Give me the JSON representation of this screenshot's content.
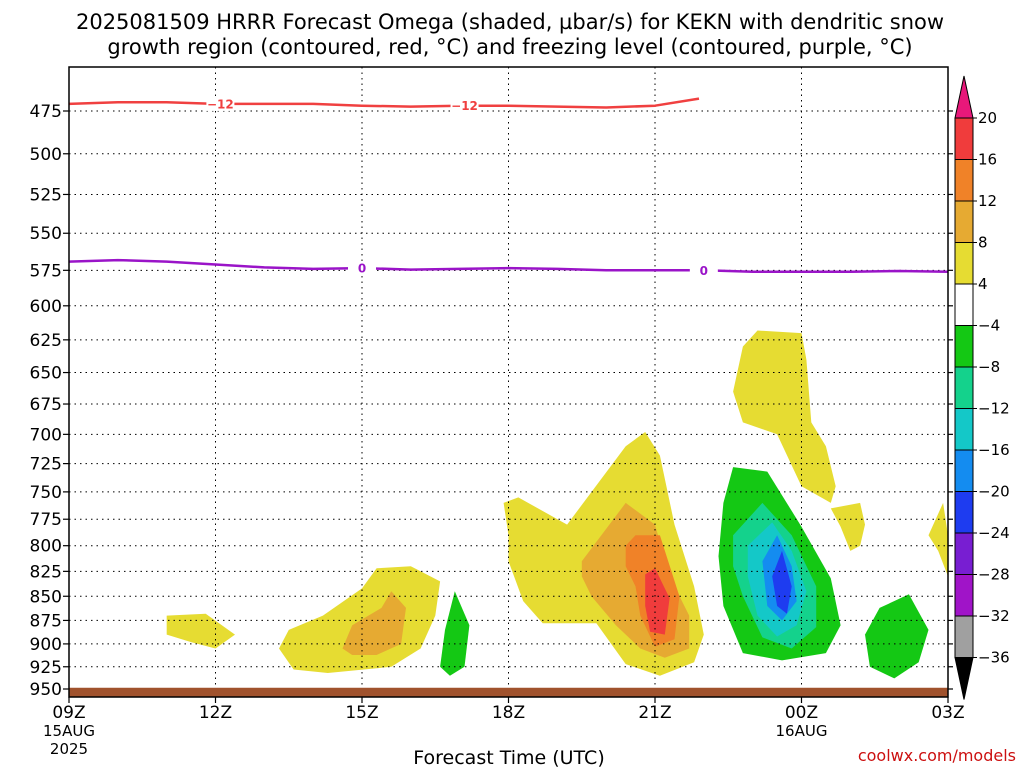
{
  "title": {
    "line1": "2025081509 HRRR Forecast Omega (shaded, µbar/s) for KEKN with dendritic snow",
    "line2": "growth region (contoured, red, °C) and freezing level (contoured, purple, °C)"
  },
  "credit": "coolwx.com/models",
  "chart_data": {
    "type": "contour",
    "title": "2025081509 HRRR Forecast Omega (shaded, µbar/s) for KEKN with dendritic snow growth region (contoured, red, °C) and freezing level (contoured, purple, °C)",
    "xlabel": "Forecast Time (UTC)",
    "ylabel": "",
    "x_range_hours": [
      0,
      18
    ],
    "y_range_hpa": [
      450,
      955
    ],
    "y_axis": "pressure (hPa), decreasing upward",
    "grid": "dotted",
    "x_ticks": [
      {
        "hour": 0,
        "label": "09Z",
        "sub1": "15AUG",
        "sub2": "2025"
      },
      {
        "hour": 3,
        "label": "12Z"
      },
      {
        "hour": 6,
        "label": "15Z"
      },
      {
        "hour": 9,
        "label": "18Z"
      },
      {
        "hour": 12,
        "label": "21Z"
      },
      {
        "hour": 15,
        "label": "00Z",
        "sub1": "16AUG"
      },
      {
        "hour": 18,
        "label": "03Z"
      }
    ],
    "y_ticks": [
      475,
      500,
      525,
      550,
      575,
      600,
      625,
      650,
      675,
      700,
      725,
      750,
      775,
      800,
      825,
      850,
      875,
      900,
      925,
      950
    ],
    "colorbar": {
      "unit": "µbar/s",
      "labels": [
        "20",
        "16",
        "12",
        "8",
        "4",
        "−4",
        "−8",
        "−12",
        "−16",
        "−20",
        "−24",
        "−28",
        "−32",
        "−36"
      ],
      "bins": [
        {
          "range": ">20",
          "color": "#e8187a"
        },
        {
          "range": "16 to 20",
          "color": "#f03c3c"
        },
        {
          "range": "12 to 16",
          "color": "#f08228"
        },
        {
          "range": "8 to 12",
          "color": "#e6aa32"
        },
        {
          "range": "4 to 8",
          "color": "#e6dc32"
        },
        {
          "range": "-4 to 4",
          "color": "#ffffff"
        },
        {
          "range": "-8 to -4",
          "color": "#14c814"
        },
        {
          "range": "-12 to -8",
          "color": "#14d28c"
        },
        {
          "range": "-16 to -12",
          "color": "#14c8c8"
        },
        {
          "range": "-20 to -16",
          "color": "#148cf0"
        },
        {
          "range": "-24 to -20",
          "color": "#1e3cf0"
        },
        {
          "range": "-28 to -24",
          "color": "#781ed2"
        },
        {
          "range": "-32 to -28",
          "color": "#a014c8"
        },
        {
          "range": "-36 to -32",
          "color": "#a0a0a0"
        },
        {
          "range": "<-36",
          "color": "#000000"
        }
      ]
    },
    "omega_regions": [
      {
        "level": "4 to 8",
        "color": "#e6dc32",
        "points": [
          [
            2.0,
            870
          ],
          [
            2.8,
            868
          ],
          [
            3.4,
            890
          ],
          [
            3.0,
            905
          ],
          [
            2.5,
            898
          ],
          [
            2.0,
            890
          ]
        ]
      },
      {
        "level": "4 to 8",
        "color": "#e6dc32",
        "points": [
          [
            4.3,
            905
          ],
          [
            4.5,
            885
          ],
          [
            5.2,
            870
          ],
          [
            6.0,
            842
          ],
          [
            6.3,
            822
          ],
          [
            7.0,
            820
          ],
          [
            7.6,
            835
          ],
          [
            7.5,
            870
          ],
          [
            7.2,
            905
          ],
          [
            6.6,
            925
          ],
          [
            5.3,
            932
          ],
          [
            4.6,
            928
          ]
        ]
      },
      {
        "level": "8 to 12",
        "color": "#e6aa32",
        "points": [
          [
            5.6,
            905
          ],
          [
            5.8,
            880
          ],
          [
            6.4,
            862
          ],
          [
            6.6,
            845
          ],
          [
            6.9,
            862
          ],
          [
            6.8,
            900
          ],
          [
            6.3,
            912
          ],
          [
            5.8,
            912
          ]
        ]
      },
      {
        "level": "4 to 8",
        "color": "#e6dc32",
        "points": [
          [
            9.0,
            790
          ],
          [
            8.9,
            760
          ],
          [
            9.2,
            755
          ],
          [
            10.2,
            780
          ],
          [
            11.4,
            710
          ],
          [
            11.8,
            698
          ],
          [
            12.1,
            718
          ],
          [
            12.4,
            780
          ],
          [
            12.8,
            840
          ],
          [
            13.0,
            890
          ],
          [
            12.8,
            920
          ],
          [
            12.1,
            935
          ],
          [
            11.4,
            922
          ],
          [
            10.8,
            878
          ],
          [
            9.7,
            878
          ],
          [
            9.3,
            855
          ],
          [
            9.0,
            815
          ]
        ]
      },
      {
        "level": "8 to 12",
        "color": "#e6aa32",
        "points": [
          [
            10.5,
            815
          ],
          [
            11.4,
            760
          ],
          [
            12.0,
            780
          ],
          [
            12.3,
            830
          ],
          [
            12.7,
            870
          ],
          [
            12.7,
            905
          ],
          [
            12.2,
            915
          ],
          [
            11.7,
            905
          ],
          [
            11.2,
            880
          ],
          [
            10.7,
            850
          ],
          [
            10.5,
            830
          ]
        ]
      },
      {
        "level": "12 to 16",
        "color": "#f08228",
        "points": [
          [
            11.4,
            800
          ],
          [
            11.6,
            790
          ],
          [
            12.1,
            790
          ],
          [
            12.5,
            850
          ],
          [
            12.4,
            895
          ],
          [
            12.0,
            903
          ],
          [
            11.7,
            870
          ],
          [
            11.6,
            840
          ],
          [
            11.4,
            820
          ]
        ]
      },
      {
        "level": "16 to 20",
        "color": "#f03c3c",
        "points": [
          [
            11.8,
            828
          ],
          [
            12.0,
            822
          ],
          [
            12.3,
            852
          ],
          [
            12.2,
            890
          ],
          [
            11.9,
            887
          ],
          [
            11.8,
            860
          ]
        ]
      },
      {
        "level": "4 to 8",
        "color": "#e6dc32",
        "points": [
          [
            13.6,
            665
          ],
          [
            13.8,
            630
          ],
          [
            14.1,
            618
          ],
          [
            15.0,
            620
          ],
          [
            15.1,
            640
          ],
          [
            15.2,
            690
          ],
          [
            15.5,
            710
          ],
          [
            15.7,
            745
          ],
          [
            15.6,
            760
          ],
          [
            15.0,
            745
          ],
          [
            14.5,
            700
          ],
          [
            13.8,
            690
          ]
        ]
      },
      {
        "level": "4 to 8",
        "color": "#e6dc32",
        "points": [
          [
            15.6,
            765
          ],
          [
            16.2,
            760
          ],
          [
            16.3,
            780
          ],
          [
            16.2,
            800
          ],
          [
            16.0,
            805
          ],
          [
            15.8,
            782
          ]
        ]
      },
      {
        "level": "4 to 8",
        "color": "#e6dc32",
        "points": [
          [
            17.6,
            790
          ],
          [
            17.9,
            760
          ],
          [
            18.0,
            790
          ],
          [
            18.0,
            830
          ],
          [
            17.8,
            805
          ]
        ]
      },
      {
        "level": "-8 to -4",
        "color": "#14c814",
        "points": [
          [
            7.6,
            925
          ],
          [
            7.7,
            885
          ],
          [
            7.9,
            845
          ],
          [
            8.2,
            880
          ],
          [
            8.1,
            925
          ],
          [
            7.8,
            935
          ]
        ]
      },
      {
        "level": "-8 to -4",
        "color": "#14c814",
        "points": [
          [
            13.4,
            760
          ],
          [
            13.6,
            728
          ],
          [
            14.3,
            732
          ],
          [
            15.0,
            782
          ],
          [
            15.6,
            832
          ],
          [
            15.8,
            880
          ],
          [
            15.5,
            910
          ],
          [
            14.6,
            918
          ],
          [
            13.8,
            910
          ],
          [
            13.4,
            860
          ],
          [
            13.3,
            810
          ]
        ]
      },
      {
        "level": "-12 to -8",
        "color": "#14d28c",
        "points": [
          [
            13.6,
            790
          ],
          [
            14.2,
            760
          ],
          [
            14.8,
            790
          ],
          [
            15.3,
            840
          ],
          [
            15.3,
            882
          ],
          [
            14.8,
            905
          ],
          [
            14.2,
            893
          ],
          [
            13.8,
            850
          ],
          [
            13.6,
            820
          ]
        ]
      },
      {
        "level": "-16 to -12",
        "color": "#14c8c8",
        "points": [
          [
            13.9,
            800
          ],
          [
            14.4,
            778
          ],
          [
            14.8,
            805
          ],
          [
            15.1,
            845
          ],
          [
            14.9,
            880
          ],
          [
            14.5,
            892
          ],
          [
            14.1,
            870
          ],
          [
            13.9,
            830
          ]
        ]
      },
      {
        "level": "-20 to -16",
        "color": "#148cf0",
        "points": [
          [
            14.2,
            815
          ],
          [
            14.5,
            790
          ],
          [
            14.8,
            820
          ],
          [
            14.9,
            855
          ],
          [
            14.6,
            875
          ],
          [
            14.3,
            860
          ]
        ]
      },
      {
        "level": "-24 to -20",
        "color": "#1e3cf0",
        "points": [
          [
            14.4,
            830
          ],
          [
            14.6,
            805
          ],
          [
            14.8,
            840
          ],
          [
            14.7,
            868
          ],
          [
            14.5,
            860
          ]
        ]
      },
      {
        "level": "-8 to -4",
        "color": "#14c814",
        "points": [
          [
            16.3,
            890
          ],
          [
            16.6,
            862
          ],
          [
            17.2,
            848
          ],
          [
            17.6,
            885
          ],
          [
            17.4,
            920
          ],
          [
            16.9,
            938
          ],
          [
            16.4,
            925
          ]
        ]
      }
    ],
    "contours": [
      {
        "name": "-12",
        "color": "#f04040",
        "label": "−12",
        "label_hours": [
          3.1,
          8.1
        ],
        "points": [
          [
            0,
            471
          ],
          [
            1,
            470
          ],
          [
            2,
            470
          ],
          [
            3,
            471
          ],
          [
            4,
            471
          ],
          [
            5,
            471
          ],
          [
            6,
            472
          ],
          [
            7,
            472.5
          ],
          [
            8,
            472
          ],
          [
            9,
            472
          ],
          [
            10,
            472.5
          ],
          [
            11,
            473
          ],
          [
            12,
            472
          ],
          [
            12.9,
            468
          ]
        ]
      },
      {
        "name": "0",
        "color": "#9a14c8",
        "label": "0",
        "label_hours": [
          6.0,
          13.0
        ],
        "points": [
          [
            0,
            569
          ],
          [
            1,
            568
          ],
          [
            2,
            569
          ],
          [
            3,
            571
          ],
          [
            4,
            573
          ],
          [
            5,
            574
          ],
          [
            6,
            573.5
          ],
          [
            7,
            574.5
          ],
          [
            8,
            574
          ],
          [
            9,
            573.5
          ],
          [
            10,
            574
          ],
          [
            11,
            575
          ],
          [
            12,
            575
          ],
          [
            13,
            575
          ],
          [
            14,
            576
          ],
          [
            15,
            576
          ],
          [
            16,
            576
          ],
          [
            17,
            575.5
          ],
          [
            18,
            576
          ]
        ]
      }
    ],
    "ground_pressure_hpa": 952
  }
}
